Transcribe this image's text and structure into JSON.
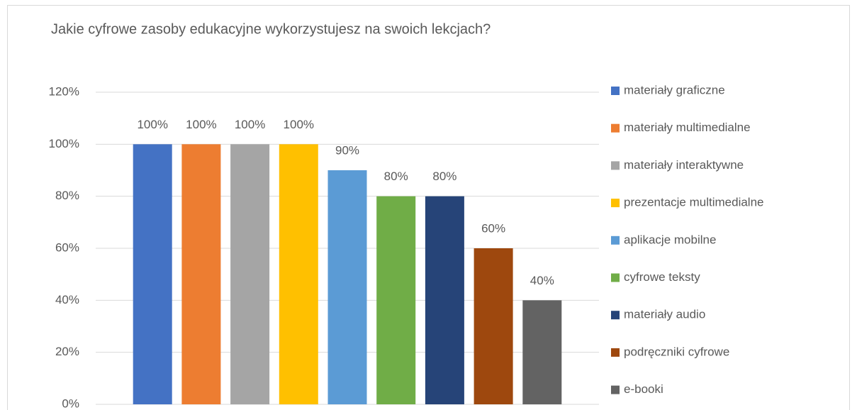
{
  "chart_data": {
    "type": "bar",
    "title": "Jakie cyfrowe zasoby edukacyjne wykorzystujesz na swoich lekcjach?",
    "ylim": [
      0,
      120
    ],
    "yticks": [
      {
        "value": 0,
        "label": "0%"
      },
      {
        "value": 20,
        "label": "20%"
      },
      {
        "value": 40,
        "label": "40%"
      },
      {
        "value": 60,
        "label": "60%"
      },
      {
        "value": 80,
        "label": "80%"
      },
      {
        "value": 100,
        "label": "100%"
      },
      {
        "value": 120,
        "label": "120%"
      }
    ],
    "grid": true,
    "legend": "right",
    "series": [
      {
        "name": "materiały graficzne",
        "color": "#4472c4",
        "values": [
          100
        ],
        "value_labels": [
          "100%"
        ]
      },
      {
        "name": "materiały multimedialne",
        "color": "#ed7d31",
        "values": [
          100
        ],
        "value_labels": [
          "100%"
        ]
      },
      {
        "name": "materiały interaktywne",
        "color": "#a5a5a5",
        "values": [
          100
        ],
        "value_labels": [
          "100%"
        ]
      },
      {
        "name": "prezentacje multimedialne",
        "color": "#ffc000",
        "values": [
          100
        ],
        "value_labels": [
          "100%"
        ]
      },
      {
        "name": "aplikacje mobilne",
        "color": "#5b9bd5",
        "values": [
          90
        ],
        "value_labels": [
          "90%"
        ]
      },
      {
        "name": "cyfrowe teksty",
        "color": "#70ad47",
        "values": [
          80
        ],
        "value_labels": [
          "80%"
        ]
      },
      {
        "name": "materiały audio",
        "color": "#264478",
        "values": [
          80
        ],
        "value_labels": [
          "80%"
        ]
      },
      {
        "name": "podręczniki cyfrowe",
        "color": "#9e480e",
        "values": [
          60
        ],
        "value_labels": [
          "60%"
        ]
      },
      {
        "name": "e-booki",
        "color": "#636363",
        "values": [
          40
        ],
        "value_labels": [
          "40%"
        ]
      }
    ]
  }
}
